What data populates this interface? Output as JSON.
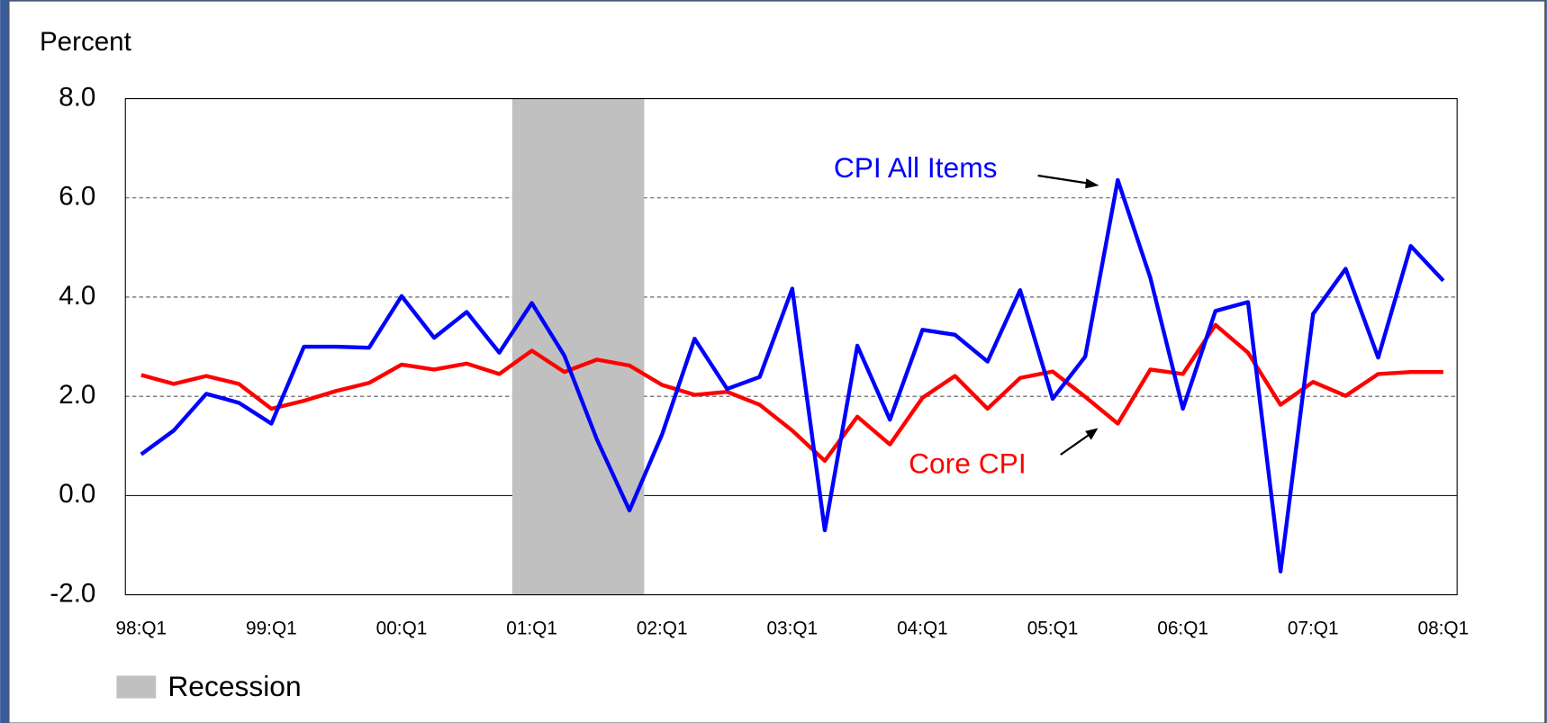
{
  "chart_data": {
    "type": "line",
    "y_axis_label": "Percent",
    "categories": [
      "98:Q1",
      null,
      null,
      null,
      "99:Q1",
      null,
      null,
      null,
      "00:Q1",
      null,
      null,
      null,
      "01:Q1",
      null,
      null,
      null,
      "02:Q1",
      null,
      null,
      null,
      "03:Q1",
      null,
      null,
      null,
      "04:Q1",
      null,
      null,
      null,
      "05:Q1",
      null,
      null,
      null,
      "06:Q1",
      null,
      null,
      null,
      "07:Q1",
      null,
      null,
      null,
      "08:Q1"
    ],
    "series": [
      {
        "name": "CPI All Items",
        "color": "#0000ff",
        "values": [
          0.83,
          1.31,
          2.05,
          1.87,
          1.45,
          3.0,
          3.0,
          2.98,
          4.02,
          3.18,
          3.7,
          2.88,
          3.88,
          2.82,
          1.13,
          -0.3,
          1.23,
          3.16,
          2.15,
          2.39,
          4.17,
          -0.7,
          3.02,
          1.53,
          3.34,
          3.24,
          2.7,
          4.14,
          1.95,
          2.8,
          6.36,
          4.39,
          1.75,
          3.72,
          3.9,
          -1.53,
          3.66,
          4.57,
          2.78,
          5.03,
          4.33
        ]
      },
      {
        "name": "Core CPI",
        "color": "#ff0000",
        "values": [
          2.43,
          2.25,
          2.41,
          2.25,
          1.75,
          1.91,
          2.11,
          2.27,
          2.64,
          2.54,
          2.66,
          2.45,
          2.92,
          2.49,
          2.74,
          2.62,
          2.23,
          2.03,
          2.09,
          1.83,
          1.31,
          0.7,
          1.59,
          1.03,
          1.97,
          2.41,
          1.75,
          2.37,
          2.5,
          1.99,
          1.45,
          2.54,
          2.45,
          3.44,
          2.88,
          1.83,
          2.29,
          2.01,
          2.45,
          2.49,
          2.49
        ]
      }
    ],
    "recession": {
      "name": "Recession",
      "color": "#c0c0c0",
      "span": [
        11.4,
        15.45
      ]
    },
    "ylim": [
      -2,
      8
    ],
    "yticks": [
      {
        "value": -2,
        "label": "-2.0"
      },
      {
        "value": 0,
        "label": "0.0"
      },
      {
        "value": 2,
        "label": "2.0"
      },
      {
        "value": 4,
        "label": "4.0"
      },
      {
        "value": 6,
        "label": "6.0"
      },
      {
        "value": 8,
        "label": "8.0"
      }
    ],
    "grid": true
  }
}
